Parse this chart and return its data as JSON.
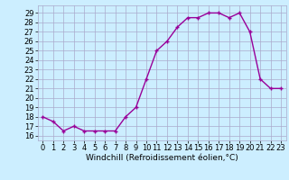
{
  "x": [
    0,
    1,
    2,
    3,
    4,
    5,
    6,
    7,
    8,
    9,
    10,
    11,
    12,
    13,
    14,
    15,
    16,
    17,
    18,
    19,
    20,
    21,
    22,
    23
  ],
  "y": [
    18,
    17.5,
    16.5,
    17,
    16.5,
    16.5,
    16.5,
    16.5,
    18,
    19,
    22,
    25,
    26,
    27.5,
    28.5,
    28.5,
    29,
    29,
    28.5,
    29,
    27,
    22,
    21,
    21
  ],
  "line_color": "#990099",
  "marker": "+",
  "background_color": "#cceeff",
  "grid_color": "#aaaacc",
  "xlabel": "Windchill (Refroidissement éolien,°C)",
  "xlim": [
    -0.5,
    23.5
  ],
  "ylim": [
    15.5,
    29.8
  ],
  "yticks": [
    16,
    17,
    18,
    19,
    20,
    21,
    22,
    23,
    24,
    25,
    26,
    27,
    28,
    29
  ],
  "xticks": [
    0,
    1,
    2,
    3,
    4,
    5,
    6,
    7,
    8,
    9,
    10,
    11,
    12,
    13,
    14,
    15,
    16,
    17,
    18,
    19,
    20,
    21,
    22,
    23
  ],
  "xlabel_fontsize": 6.5,
  "tick_fontsize": 6,
  "linewidth": 1.0,
  "markersize": 3,
  "markeredgewidth": 1.0
}
